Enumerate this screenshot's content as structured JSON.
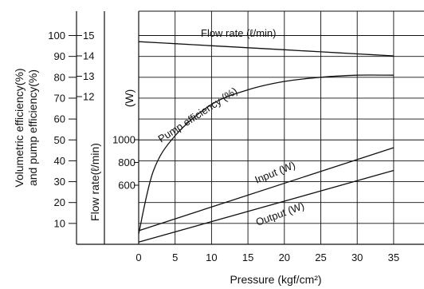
{
  "chart_data": {
    "type": "line",
    "title": "",
    "x_axis": {
      "label": "Pressure (kgf/cm²)",
      "ticks": [
        0,
        5,
        10,
        15,
        20,
        25,
        30,
        35
      ],
      "range": [
        0,
        35
      ]
    },
    "y_axes": [
      {
        "id": "eff",
        "label_lines": [
          "Volumetric efficiency(%)",
          "and pump efficiency(%)"
        ],
        "unit": "%",
        "ticks": [
          10,
          20,
          30,
          40,
          50,
          60,
          70,
          80,
          90,
          100
        ]
      },
      {
        "id": "flow",
        "label": "Flow rate(ℓ/min)",
        "unit": "ℓ/min",
        "ticks": [
          12,
          13,
          14,
          15
        ]
      },
      {
        "id": "power",
        "label": "(W)",
        "unit": "W",
        "ticks": [
          600,
          800,
          1000
        ]
      }
    ],
    "grid": true,
    "series": [
      {
        "name": "Flow rate (ℓ/min)",
        "axis": "flow",
        "x": [
          0,
          5,
          10,
          15,
          20,
          25,
          30,
          35
        ],
        "y": [
          14.7,
          14.6,
          14.5,
          14.4,
          14.3,
          14.2,
          14.1,
          14.0
        ]
      },
      {
        "name": "Pump efficiency (%)",
        "axis": "eff",
        "x": [
          0,
          2,
          5,
          10,
          15,
          20,
          25,
          30,
          35
        ],
        "y": [
          5,
          35,
          52,
          67,
          74,
          78,
          80,
          81,
          81
        ]
      },
      {
        "name": "Input (W)",
        "axis": "power",
        "x": [
          0,
          35
        ],
        "y": [
          200,
          930
        ]
      },
      {
        "name": "Output (W)",
        "axis": "power",
        "x": [
          0,
          35
        ],
        "y": [
          100,
          730
        ]
      }
    ]
  }
}
